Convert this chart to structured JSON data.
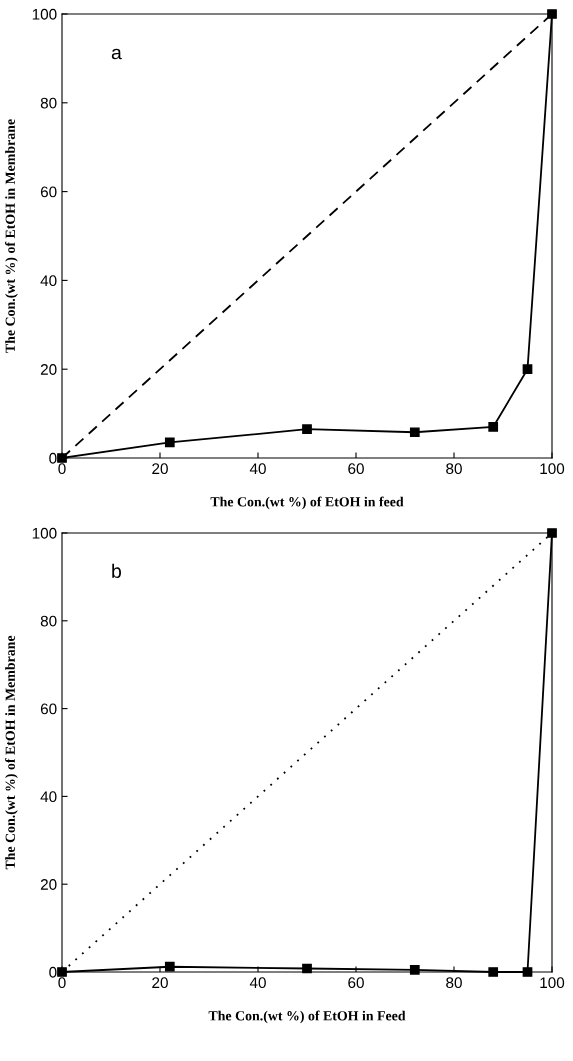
{
  "chart_data": [
    {
      "type": "line",
      "xlabel": "The Con.(wt %) of EtOH in feed",
      "ylabel": "The Con.(wt %) of EtOH in Membrane",
      "annotations": [
        "a"
      ],
      "xlim": [
        0,
        100
      ],
      "ylim": [
        0,
        100
      ],
      "xticks": [
        0,
        20,
        40,
        60,
        80,
        100
      ],
      "yticks": [
        0,
        20,
        40,
        60,
        80,
        100
      ],
      "grid": false,
      "series": [
        {
          "color": "#000000",
          "x": [
            0,
            22,
            50,
            72,
            88,
            95,
            100
          ],
          "values": [
            0,
            3.5,
            6.5,
            5.8,
            7,
            20,
            100
          ],
          "marker": "square",
          "line_style": "solid"
        },
        {
          "color": "#000000",
          "x": [
            0,
            100
          ],
          "values": [
            0,
            100
          ],
          "marker": "none",
          "line_style": "dashed"
        }
      ]
    },
    {
      "type": "line",
      "xlabel": "The Con.(wt %) of EtOH in Feed",
      "ylabel": "The Con.(wt %) of EtOH in Membrane",
      "annotations": [
        "b"
      ],
      "xlim": [
        0,
        100
      ],
      "ylim": [
        0,
        100
      ],
      "xticks": [
        0,
        20,
        40,
        60,
        80,
        100
      ],
      "yticks": [
        0,
        20,
        40,
        60,
        80,
        100
      ],
      "grid": false,
      "series": [
        {
          "color": "#000000",
          "x": [
            0,
            22,
            50,
            72,
            88,
            95,
            100
          ],
          "values": [
            0,
            1.2,
            0.8,
            0.5,
            0,
            0,
            100
          ],
          "marker": "square",
          "line_style": "solid"
        },
        {
          "color": "#000000",
          "x": [
            0,
            100
          ],
          "values": [
            0,
            100
          ],
          "marker": "none",
          "line_style": "dotted"
        }
      ]
    }
  ]
}
